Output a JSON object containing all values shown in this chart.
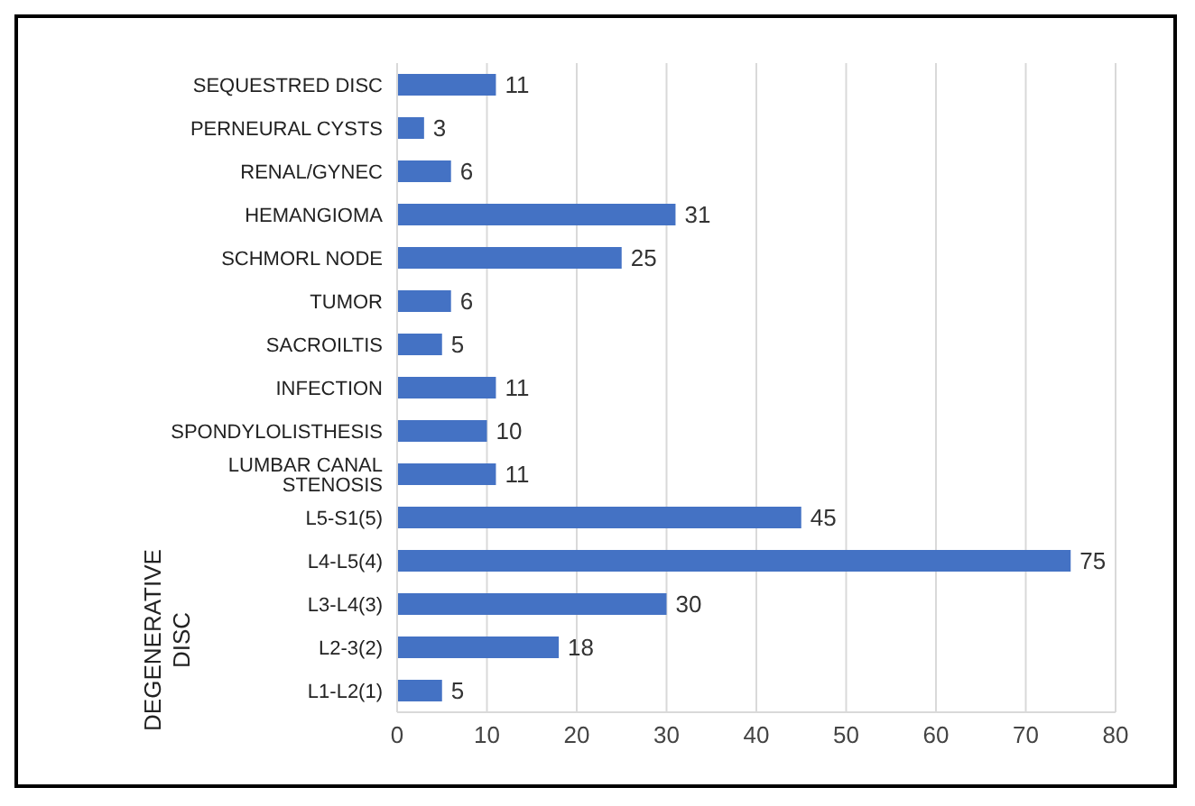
{
  "chart_data": {
    "type": "bar",
    "orientation": "horizontal",
    "ylabel": "DEGENERATIVE DISC",
    "categories": [
      "SEQUESTRED DISC",
      "PERNEURAL CYSTS",
      "RENAL/GYNEC",
      "HEMANGIOMA",
      "SCHMORL NODE",
      "TUMOR",
      "SACROILTIS",
      "INFECTION",
      "SPONDYLOLISTHESIS",
      "LUMBAR CANAL STENOSIS",
      "L5-S1(5)",
      "L4-L5(4)",
      "L3-L4(3)",
      "L2-3(2)",
      "L1-L2(1)"
    ],
    "values": [
      11,
      3,
      6,
      31,
      25,
      6,
      5,
      11,
      10,
      11,
      45,
      75,
      30,
      18,
      5
    ],
    "color": "#4472c4",
    "xlim": [
      0,
      80
    ],
    "xticks": [
      0,
      10,
      20,
      30,
      40,
      50,
      60,
      70,
      80
    ],
    "grid": "x",
    "data_labels": true
  }
}
